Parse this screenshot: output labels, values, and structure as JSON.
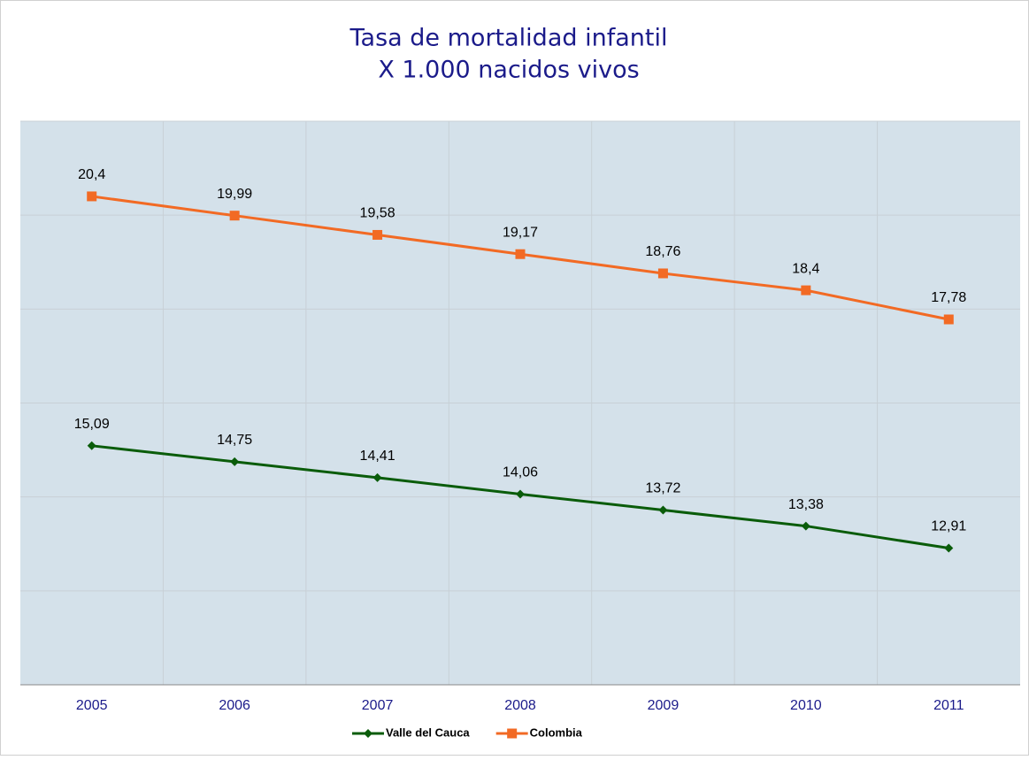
{
  "chart_data": {
    "type": "line",
    "title": "Tasa de mortalidad infantil",
    "subtitle": "X 1.000 nacidos vivos",
    "categories": [
      "2005",
      "2006",
      "2007",
      "2008",
      "2009",
      "2010",
      "2011"
    ],
    "series": [
      {
        "name": "Valle del Cauca",
        "color": "#0a5c0a",
        "marker": "diamond",
        "values": [
          15.09,
          14.75,
          14.41,
          14.06,
          13.72,
          13.38,
          12.91
        ],
        "value_labels": [
          "15,09",
          "14,75",
          "14,41",
          "14,06",
          "13,72",
          "13,38",
          "12,91"
        ]
      },
      {
        "name": "Colombia",
        "color": "#f26a24",
        "marker": "square",
        "values": [
          20.4,
          19.99,
          19.58,
          19.17,
          18.76,
          18.4,
          17.78
        ],
        "value_labels": [
          "20,4",
          "19,99",
          "19,58",
          "19,17",
          "18,76",
          "18,4",
          "17,78"
        ]
      }
    ],
    "ylim": [
      10,
      22
    ],
    "yticks": [
      10,
      12,
      14,
      16,
      18,
      20,
      22
    ],
    "grid": true,
    "legend": "bottom"
  }
}
